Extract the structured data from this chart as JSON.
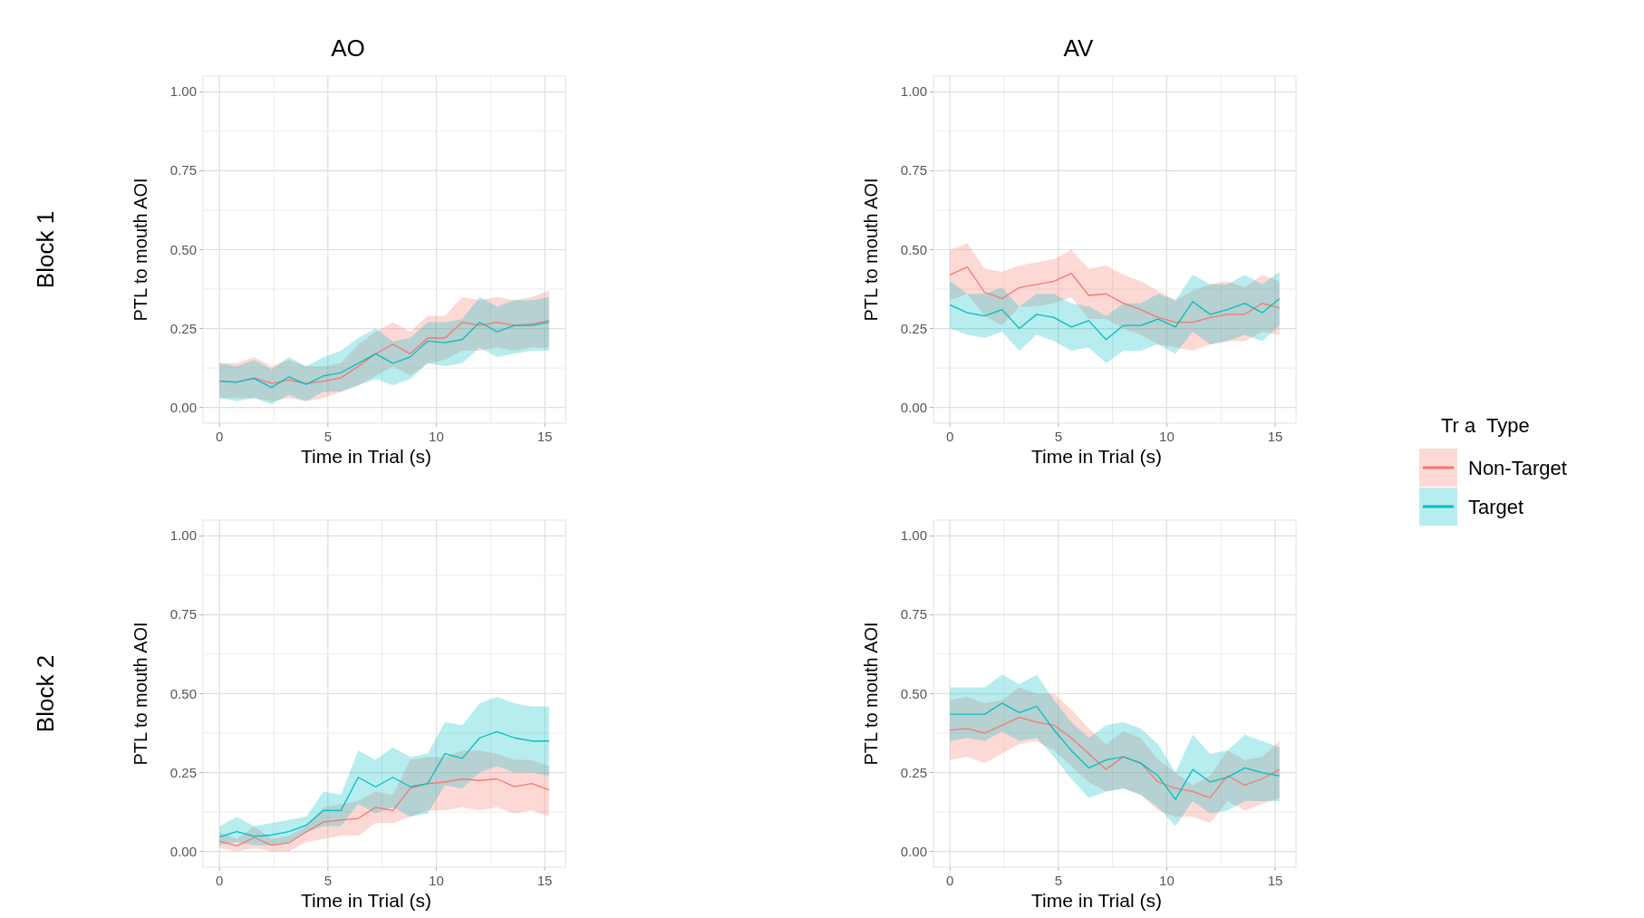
{
  "chart_data": [
    {
      "type": "line",
      "title": "AO",
      "annotations": [
        "Block 1"
      ],
      "xlabel": "Time in Trial (s)",
      "ylabel": "PTL to mouth AOI",
      "x": [
        0,
        0.8,
        1.6,
        2.4,
        3.2,
        4.0,
        4.8,
        5.6,
        6.4,
        7.2,
        8.0,
        8.8,
        9.6,
        10.4,
        11.2,
        12.0,
        12.8,
        13.6,
        14.4,
        15.2
      ],
      "xlim": [
        -0.76,
        15.96
      ],
      "ylim": [
        -0.05,
        1.05
      ],
      "xticks": [
        0,
        {
          "value": 2.5,
          "label": null
        },
        5,
        {
          "value": 7.5,
          "label": null
        },
        10,
        {
          "value": 12.5,
          "label": null
        },
        15
      ],
      "yticks": [
        {
          "value": 0,
          "label": "0.00"
        },
        {
          "value": 0.125,
          "label": null
        },
        {
          "value": 0.25,
          "label": "0.25"
        },
        {
          "value": 0.375,
          "label": null
        },
        {
          "value": 0.5,
          "label": "0.50"
        },
        {
          "value": 0.625,
          "label": null
        },
        {
          "value": 0.75,
          "label": "0.75"
        },
        {
          "value": 0.875,
          "label": null
        },
        {
          "value": 1,
          "label": "1.00"
        }
      ],
      "grid": true,
      "legend": false,
      "marker": "none",
      "line_style": "solid",
      "series": [
        {
          "color": "#f8766d",
          "values": [
            0.083,
            0.08,
            0.094,
            0.076,
            0.087,
            0.075,
            0.083,
            0.094,
            0.13,
            0.17,
            0.2,
            0.17,
            0.22,
            0.22,
            0.27,
            0.26,
            0.27,
            0.26,
            0.265,
            0.275
          ],
          "lower": [
            0.03,
            0.03,
            0.03,
            0.02,
            0.03,
            0.02,
            0.03,
            0.05,
            0.07,
            0.1,
            0.13,
            0.1,
            0.14,
            0.15,
            0.18,
            0.18,
            0.19,
            0.18,
            0.19,
            0.19
          ],
          "upper": [
            0.14,
            0.14,
            0.16,
            0.13,
            0.15,
            0.13,
            0.13,
            0.14,
            0.2,
            0.24,
            0.27,
            0.24,
            0.29,
            0.29,
            0.35,
            0.34,
            0.35,
            0.34,
            0.35,
            0.37
          ]
        },
        {
          "color": "#00bfc4",
          "values": [
            0.083,
            0.08,
            0.092,
            0.063,
            0.097,
            0.073,
            0.1,
            0.11,
            0.14,
            0.17,
            0.14,
            0.16,
            0.21,
            0.205,
            0.215,
            0.27,
            0.24,
            0.26,
            0.26,
            0.27
          ],
          "lower": [
            0.03,
            0.02,
            0.03,
            0.01,
            0.04,
            0.02,
            0.05,
            0.05,
            0.07,
            0.09,
            0.07,
            0.09,
            0.14,
            0.13,
            0.14,
            0.19,
            0.16,
            0.17,
            0.18,
            0.18
          ],
          "upper": [
            0.14,
            0.13,
            0.15,
            0.12,
            0.16,
            0.13,
            0.16,
            0.18,
            0.22,
            0.25,
            0.21,
            0.22,
            0.27,
            0.27,
            0.28,
            0.35,
            0.32,
            0.34,
            0.34,
            0.35
          ]
        }
      ]
    },
    {
      "type": "line",
      "title": "AV",
      "xlabel": "Time in Trial (s)",
      "ylabel": "PTL to mouth AOI",
      "legend_title": "Tr a  Type",
      "x": [
        0,
        0.8,
        1.6,
        2.4,
        3.2,
        4.0,
        4.8,
        5.6,
        6.4,
        7.2,
        8.0,
        8.8,
        9.6,
        10.4,
        11.2,
        12.0,
        12.8,
        13.6,
        14.4,
        15.2
      ],
      "xlim": [
        -0.76,
        15.96
      ],
      "ylim": [
        -0.05,
        1.05
      ],
      "xticks": [
        0,
        {
          "value": 2.5,
          "label": null
        },
        5,
        {
          "value": 7.5,
          "label": null
        },
        10,
        {
          "value": 12.5,
          "label": null
        },
        15
      ],
      "yticks": [
        {
          "value": 0,
          "label": "0.00"
        },
        {
          "value": 0.125,
          "label": null
        },
        {
          "value": 0.25,
          "label": "0.25"
        },
        {
          "value": 0.375,
          "label": null
        },
        {
          "value": 0.5,
          "label": "0.50"
        },
        {
          "value": 0.625,
          "label": null
        },
        {
          "value": 0.75,
          "label": "0.75"
        },
        {
          "value": 0.875,
          "label": null
        },
        {
          "value": 1,
          "label": "1.00"
        }
      ],
      "grid": true,
      "legend": "right",
      "marker": "none",
      "line_style": "solid",
      "series": [
        {
          "name": "Non-Target",
          "color": "#f8766d",
          "values": [
            0.42,
            0.445,
            0.365,
            0.345,
            0.38,
            0.39,
            0.4,
            0.425,
            0.355,
            0.36,
            0.33,
            0.31,
            0.285,
            0.27,
            0.27,
            0.285,
            0.295,
            0.295,
            0.33,
            0.315
          ],
          "lower": [
            0.34,
            0.36,
            0.29,
            0.26,
            0.32,
            0.32,
            0.33,
            0.35,
            0.28,
            0.28,
            0.25,
            0.23,
            0.2,
            0.19,
            0.18,
            0.2,
            0.21,
            0.21,
            0.24,
            0.23
          ],
          "upper": [
            0.5,
            0.52,
            0.44,
            0.43,
            0.45,
            0.46,
            0.47,
            0.5,
            0.44,
            0.45,
            0.42,
            0.4,
            0.37,
            0.34,
            0.37,
            0.39,
            0.4,
            0.38,
            0.42,
            0.4
          ]
        },
        {
          "name": "Target",
          "color": "#00bfc4",
          "values": [
            0.325,
            0.3,
            0.29,
            0.31,
            0.25,
            0.295,
            0.285,
            0.255,
            0.275,
            0.215,
            0.26,
            0.26,
            0.28,
            0.255,
            0.335,
            0.295,
            0.31,
            0.33,
            0.3,
            0.345
          ],
          "lower": [
            0.25,
            0.23,
            0.22,
            0.24,
            0.18,
            0.23,
            0.21,
            0.18,
            0.19,
            0.14,
            0.18,
            0.18,
            0.2,
            0.17,
            0.24,
            0.2,
            0.21,
            0.23,
            0.21,
            0.26
          ],
          "upper": [
            0.4,
            0.36,
            0.36,
            0.38,
            0.32,
            0.36,
            0.36,
            0.33,
            0.32,
            0.29,
            0.33,
            0.33,
            0.36,
            0.34,
            0.42,
            0.39,
            0.39,
            0.42,
            0.39,
            0.43
          ]
        }
      ]
    },
    {
      "type": "line",
      "annotations": [
        "Block 2"
      ],
      "xlabel": "Time in Trial (s)",
      "ylabel": "PTL to mouth AOI",
      "x": [
        0,
        0.8,
        1.6,
        2.4,
        3.2,
        4.0,
        4.8,
        5.6,
        6.4,
        7.2,
        8.0,
        8.8,
        9.6,
        10.4,
        11.2,
        12.0,
        12.8,
        13.6,
        14.4,
        15.2
      ],
      "xlim": [
        -0.76,
        15.96
      ],
      "ylim": [
        -0.05,
        1.05
      ],
      "xticks": [
        0,
        {
          "value": 2.5,
          "label": null
        },
        5,
        {
          "value": 7.5,
          "label": null
        },
        10,
        {
          "value": 12.5,
          "label": null
        },
        15
      ],
      "yticks": [
        {
          "value": 0,
          "label": "0.00"
        },
        {
          "value": 0.125,
          "label": null
        },
        {
          "value": 0.25,
          "label": "0.25"
        },
        {
          "value": 0.375,
          "label": null
        },
        {
          "value": 0.5,
          "label": "0.50"
        },
        {
          "value": 0.625,
          "label": null
        },
        {
          "value": 0.75,
          "label": "0.75"
        },
        {
          "value": 0.875,
          "label": null
        },
        {
          "value": 1,
          "label": "1.00"
        }
      ],
      "grid": true,
      "legend": false,
      "marker": "none",
      "line_style": "solid",
      "series": [
        {
          "color": "#f8766d",
          "values": [
            0.033,
            0.018,
            0.044,
            0.02,
            0.027,
            0.062,
            0.094,
            0.1,
            0.105,
            0.14,
            0.13,
            0.2,
            0.215,
            0.22,
            0.23,
            0.225,
            0.23,
            0.205,
            0.215,
            0.195
          ],
          "lower": [
            0.01,
            0,
            0.01,
            0,
            0,
            0.03,
            0.04,
            0.05,
            0.05,
            0.09,
            0.09,
            0.11,
            0.13,
            0.13,
            0.14,
            0.13,
            0.14,
            0.12,
            0.13,
            0.11
          ],
          "upper": [
            0.06,
            0.04,
            0.08,
            0.04,
            0.05,
            0.08,
            0.14,
            0.15,
            0.16,
            0.19,
            0.18,
            0.29,
            0.3,
            0.3,
            0.32,
            0.32,
            0.31,
            0.29,
            0.29,
            0.27
          ]
        },
        {
          "color": "#00bfc4",
          "values": [
            0.046,
            0.063,
            0.048,
            0.052,
            0.063,
            0.083,
            0.13,
            0.13,
            0.235,
            0.205,
            0.235,
            0.205,
            0.215,
            0.31,
            0.295,
            0.36,
            0.38,
            0.36,
            0.35,
            0.35
          ],
          "lower": [
            0.02,
            0.03,
            0.02,
            0.02,
            0.03,
            0.06,
            0.08,
            0.08,
            0.15,
            0.12,
            0.14,
            0.11,
            0.12,
            0.21,
            0.2,
            0.25,
            0.27,
            0.25,
            0.25,
            0.24
          ],
          "upper": [
            0.08,
            0.11,
            0.08,
            0.09,
            0.1,
            0.11,
            0.19,
            0.18,
            0.32,
            0.29,
            0.33,
            0.3,
            0.31,
            0.41,
            0.4,
            0.47,
            0.49,
            0.47,
            0.46,
            0.46
          ]
        }
      ]
    },
    {
      "type": "line",
      "xlabel": "Time in Trial (s)",
      "ylabel": "PTL to mouth AOI",
      "x": [
        0,
        0.8,
        1.6,
        2.4,
        3.2,
        4.0,
        4.8,
        5.6,
        6.4,
        7.2,
        8.0,
        8.8,
        9.6,
        10.4,
        11.2,
        12.0,
        12.8,
        13.6,
        14.4,
        15.2
      ],
      "xlim": [
        -0.76,
        15.96
      ],
      "ylim": [
        -0.05,
        1.05
      ],
      "xticks": [
        0,
        {
          "value": 2.5,
          "label": null
        },
        5,
        {
          "value": 7.5,
          "label": null
        },
        10,
        {
          "value": 12.5,
          "label": null
        },
        15
      ],
      "yticks": [
        {
          "value": 0,
          "label": "0.00"
        },
        {
          "value": 0.125,
          "label": null
        },
        {
          "value": 0.25,
          "label": "0.25"
        },
        {
          "value": 0.375,
          "label": null
        },
        {
          "value": 0.5,
          "label": "0.50"
        },
        {
          "value": 0.625,
          "label": null
        },
        {
          "value": 0.75,
          "label": "0.75"
        },
        {
          "value": 0.875,
          "label": null
        },
        {
          "value": 1,
          "label": "1.00"
        }
      ],
      "grid": true,
      "legend": false,
      "marker": "none",
      "line_style": "solid",
      "series": [
        {
          "color": "#f8766d",
          "values": [
            0.385,
            0.39,
            0.375,
            0.4,
            0.425,
            0.41,
            0.4,
            0.36,
            0.31,
            0.26,
            0.3,
            0.28,
            0.22,
            0.2,
            0.19,
            0.17,
            0.24,
            0.21,
            0.23,
            0.26
          ],
          "lower": [
            0.29,
            0.3,
            0.28,
            0.31,
            0.34,
            0.35,
            0.32,
            0.27,
            0.22,
            0.19,
            0.2,
            0.18,
            0.13,
            0.11,
            0.11,
            0.09,
            0.16,
            0.13,
            0.15,
            0.17
          ],
          "upper": [
            0.48,
            0.49,
            0.47,
            0.48,
            0.52,
            0.5,
            0.5,
            0.45,
            0.39,
            0.34,
            0.38,
            0.36,
            0.29,
            0.25,
            0.21,
            0.24,
            0.32,
            0.29,
            0.3,
            0.35
          ]
        },
        {
          "color": "#00bfc4",
          "values": [
            0.435,
            0.435,
            0.435,
            0.47,
            0.44,
            0.46,
            0.385,
            0.32,
            0.265,
            0.29,
            0.3,
            0.28,
            0.24,
            0.165,
            0.26,
            0.22,
            0.235,
            0.265,
            0.25,
            0.24
          ],
          "lower": [
            0.35,
            0.36,
            0.35,
            0.38,
            0.35,
            0.36,
            0.3,
            0.23,
            0.17,
            0.19,
            0.2,
            0.18,
            0.14,
            0.08,
            0.16,
            0.12,
            0.13,
            0.16,
            0.16,
            0.16
          ],
          "upper": [
            0.52,
            0.52,
            0.52,
            0.56,
            0.53,
            0.56,
            0.48,
            0.41,
            0.36,
            0.4,
            0.41,
            0.39,
            0.34,
            0.25,
            0.37,
            0.31,
            0.32,
            0.37,
            0.35,
            0.33
          ]
        }
      ]
    }
  ]
}
